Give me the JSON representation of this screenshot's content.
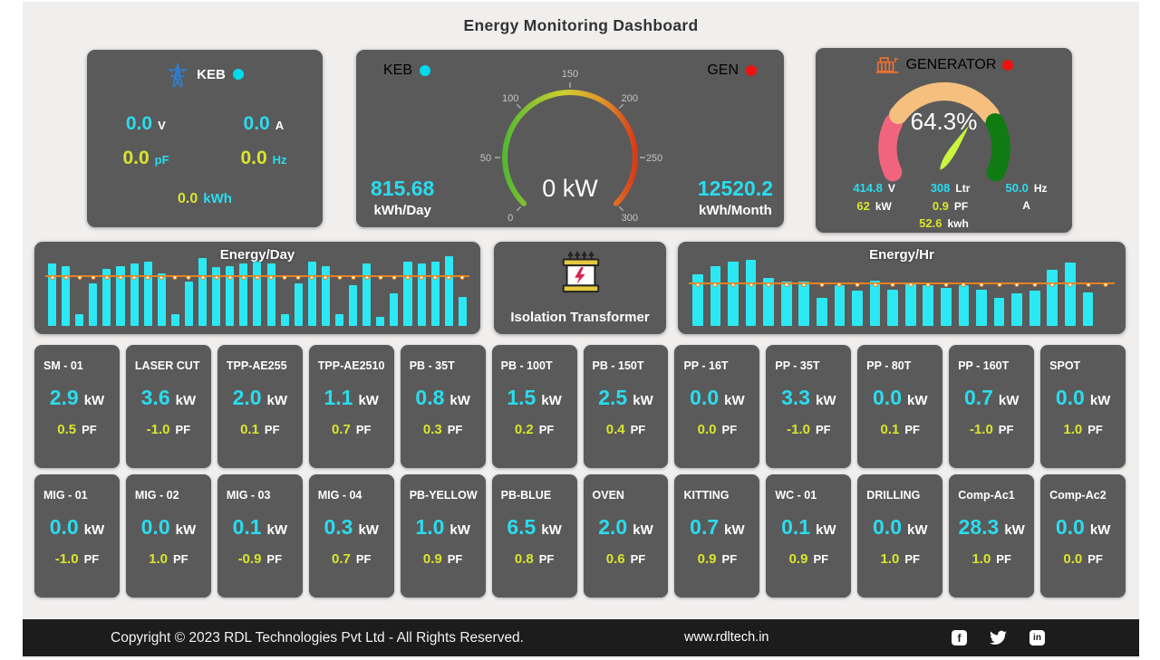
{
  "page": {
    "title": "Energy Monitoring Dashboard"
  },
  "colors": {
    "panel": "#5a5a5a",
    "background": "#f0efee",
    "cyan": "#2adcee",
    "yellow": "#d9e62b",
    "bar": "#2ce8f3",
    "trend_line": "#e8821e",
    "keb_status": "#00d9ec",
    "gen_status": "#ee1111"
  },
  "keb_panel": {
    "label": "KEB",
    "status_color": "#00d9ec",
    "readings": [
      {
        "value": "0.0",
        "unit": "V",
        "value_color": "cyan",
        "unit_color": "white"
      },
      {
        "value": "0.0",
        "unit": "A",
        "value_color": "cyan",
        "unit_color": "white"
      },
      {
        "value": "0.0",
        "unit": "pF",
        "value_color": "yellow",
        "unit_color": "cyan"
      },
      {
        "value": "0.0",
        "unit": "Hz",
        "value_color": "yellow",
        "unit_color": "cyan"
      }
    ],
    "total": {
      "value": "0.0",
      "unit": "kWh",
      "value_color": "yellow",
      "unit_color": "cyan"
    }
  },
  "gauge_panel": {
    "left_source": {
      "label": "KEB",
      "color": "#00d9ec"
    },
    "right_source": {
      "label": "GEN",
      "color": "#ee1111"
    },
    "center_value": "0 kW",
    "left_stat": {
      "value": "815.68",
      "label": "kWh/Day"
    },
    "right_stat": {
      "value": "12520.2",
      "label": "kWh/Month"
    }
  },
  "generator_panel": {
    "label": "GENERATOR",
    "status_color": "#ee1111",
    "value": "64.3%",
    "readings_row1": [
      {
        "value": "414.8",
        "unit": "V",
        "value_color": "cyan"
      },
      {
        "value": "308",
        "unit": "Ltr",
        "value_color": "cyan"
      },
      {
        "value": "50.0",
        "unit": "Hz",
        "value_color": "cyan"
      }
    ],
    "readings_row2": [
      {
        "value": "62",
        "unit": "kW",
        "value_color": "yellow"
      },
      {
        "value": "0.9",
        "unit": "PF",
        "value_color": "yellow"
      },
      {
        "value": "",
        "unit": "A",
        "value_color": "white"
      }
    ],
    "readings_row3": {
      "value": "52.6",
      "unit": "kwh",
      "value_color": "yellow"
    }
  },
  "transformer_panel": {
    "label": "Isolation Transformer"
  },
  "machines": {
    "kw_unit": "kW",
    "pf_unit": "PF",
    "rows": [
      [
        {
          "name": "SM - 01",
          "kw": "2.9",
          "pf": "0.5"
        },
        {
          "name": "LASER CUT",
          "kw": "3.6",
          "pf": "-1.0"
        },
        {
          "name": "TPP-AE255",
          "kw": "2.0",
          "pf": "0.1"
        },
        {
          "name": "TPP-AE2510",
          "kw": "1.1",
          "pf": "0.7"
        },
        {
          "name": "PB - 35T",
          "kw": "0.8",
          "pf": "0.3"
        },
        {
          "name": "PB - 100T",
          "kw": "1.5",
          "pf": "0.2"
        },
        {
          "name": "PB - 150T",
          "kw": "2.5",
          "pf": "0.4"
        },
        {
          "name": "PP - 16T",
          "kw": "0.0",
          "pf": "0.0"
        },
        {
          "name": "PP - 35T",
          "kw": "3.3",
          "pf": "-1.0"
        },
        {
          "name": "PP - 80T",
          "kw": "0.0",
          "pf": "0.1"
        },
        {
          "name": "PP - 160T",
          "kw": "0.7",
          "pf": "-1.0"
        },
        {
          "name": "SPOT",
          "kw": "0.0",
          "pf": "1.0"
        }
      ],
      [
        {
          "name": "MIG - 01",
          "kw": "0.0",
          "pf": "-1.0"
        },
        {
          "name": "MIG - 02",
          "kw": "0.0",
          "pf": "1.0"
        },
        {
          "name": "MIG - 03",
          "kw": "0.1",
          "pf": "-0.9"
        },
        {
          "name": "MIG - 04",
          "kw": "0.3",
          "pf": "0.7"
        },
        {
          "name": "PB-YELLOW",
          "kw": "1.0",
          "pf": "0.9"
        },
        {
          "name": "PB-BLUE",
          "kw": "6.5",
          "pf": "0.8"
        },
        {
          "name": "OVEN",
          "kw": "2.0",
          "pf": "0.6"
        },
        {
          "name": "KITTING",
          "kw": "0.7",
          "pf": "0.9"
        },
        {
          "name": "WC - 01",
          "kw": "0.1",
          "pf": "0.9"
        },
        {
          "name": "DRILLING",
          "kw": "0.0",
          "pf": "1.0"
        },
        {
          "name": "Comp-Ac1",
          "kw": "28.3",
          "pf": "1.0"
        },
        {
          "name": "Comp-Ac2",
          "kw": "0.0",
          "pf": "0.0"
        }
      ]
    ]
  },
  "chart_data": [
    {
      "id": "source_power_gauge",
      "type": "gauge",
      "title": "",
      "value": 0,
      "unit": "kW",
      "display": "0 kW",
      "min": 0,
      "max": 300,
      "ticks": [
        0,
        50,
        100,
        150,
        200,
        250,
        300
      ],
      "start_angle": 225,
      "end_angle": -45,
      "arc_colors": [
        "#55b832",
        "#cfd02f",
        "#e1932c",
        "#da3a16"
      ]
    },
    {
      "id": "energy_day",
      "type": "bar",
      "title": "Energy/Day",
      "values": [
        85,
        82,
        16,
        58,
        78,
        82,
        85,
        88,
        72,
        16,
        60,
        92,
        80,
        82,
        85,
        88,
        85,
        16,
        58,
        88,
        82,
        16,
        55,
        85,
        12,
        45,
        88,
        85,
        88,
        95,
        40
      ],
      "line_level": 68,
      "bar_color": "#2ce8f3",
      "line_color": "#e8821e",
      "dot_color": "#ffedcf",
      "legend": "off",
      "grid": "off",
      "ylim": [
        0,
        100
      ]
    },
    {
      "id": "energy_hr",
      "type": "bar",
      "title": "Energy/Hr",
      "values": [
        70,
        82,
        88,
        90,
        66,
        60,
        60,
        38,
        55,
        48,
        62,
        50,
        58,
        56,
        52,
        56,
        50,
        38,
        44,
        48,
        76,
        86,
        46,
        0
      ],
      "line_level": 58,
      "bar_color": "#2ce8f3",
      "line_color": "#e8821e",
      "dot_color": "#ffedcf",
      "legend": "off",
      "grid": "off",
      "ylim": [
        0,
        100
      ]
    },
    {
      "id": "generator_load_gauge",
      "type": "gauge",
      "value": 64.3,
      "unit": "%",
      "display": "64.3%",
      "min": 0,
      "max": 100,
      "start_angle": 205,
      "end_angle": -25,
      "segments": [
        {
          "color": "#f2647e",
          "from": 0,
          "to": 0.226
        },
        {
          "color": "#f5bf7e",
          "from": 0.265,
          "to": 0.735
        },
        {
          "color": "#0e7c12",
          "from": 0.774,
          "to": 1.0
        }
      ],
      "needle_color": "#c9f53e"
    }
  ],
  "footer": {
    "copyright": "Copyright © 2023 RDL Technologies Pvt Ltd - All Rights Reserved.",
    "website": "www.rdltech.in",
    "social": [
      "facebook",
      "twitter",
      "linkedin"
    ]
  }
}
